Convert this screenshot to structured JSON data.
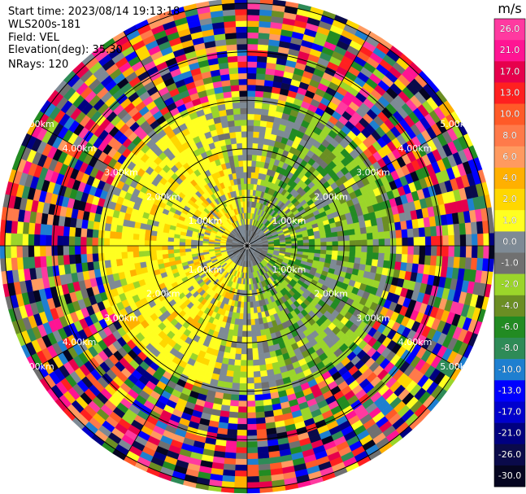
{
  "header": {
    "start_time": "Start time: 2023/08/14 19:13:18",
    "site": "WLS200s-181",
    "field": "Field: VEL",
    "elevation": "Elevation(deg): 35.30",
    "nrays": "NRays: 120"
  },
  "chart_data": {
    "type": "heatmap",
    "projection": "polar-ppi",
    "field": "VEL",
    "nrays": 120,
    "range_rings_km": [
      1.0,
      2.0,
      3.0,
      4.0,
      5.0
    ],
    "range_ring_labels": [
      "1.00km",
      "2.00km",
      "3.00km",
      "4.00km",
      "5.00km"
    ],
    "spoke_count": 12,
    "colorbar": {
      "unit": "m/s",
      "tick_labels": [
        "26.0",
        "21.0",
        "17.0",
        "13.0",
        "10.0",
        "8.0",
        "6.0",
        "4.0",
        "2.0",
        "1.0",
        "0.0",
        "-1.0",
        "-2.0",
        "-4.0",
        "-6.0",
        "-8.0",
        "-10.0",
        "-13.0",
        "-17.0",
        "-21.0",
        "-26.0",
        "-30.0"
      ],
      "colors": [
        "#ff3aa0",
        "#ff1493",
        "#e6004c",
        "#ff2020",
        "#ff5a28",
        "#ff7a4a",
        "#ff9a60",
        "#ffb000",
        "#ffd700",
        "#ffff20",
        "#7e8a95",
        "#707070",
        "#9bd52a",
        "#6b8e23",
        "#228b22",
        "#2e8b57",
        "#1e7fd0",
        "#0000ff",
        "#0000cd",
        "#000080",
        "#0a0a4a",
        "#050520"
      ]
    },
    "description_zones": [
      {
        "range_km": [
          0,
          1.8
        ],
        "dominant": "near-zero and weak positive/negative"
      },
      {
        "range_km": [
          1.8,
          3.0
        ],
        "dominant": "weak (±0-4 m/s)"
      },
      {
        "range_km": [
          3.0,
          5.1
        ],
        "dominant": "noise across full scale"
      }
    ]
  }
}
